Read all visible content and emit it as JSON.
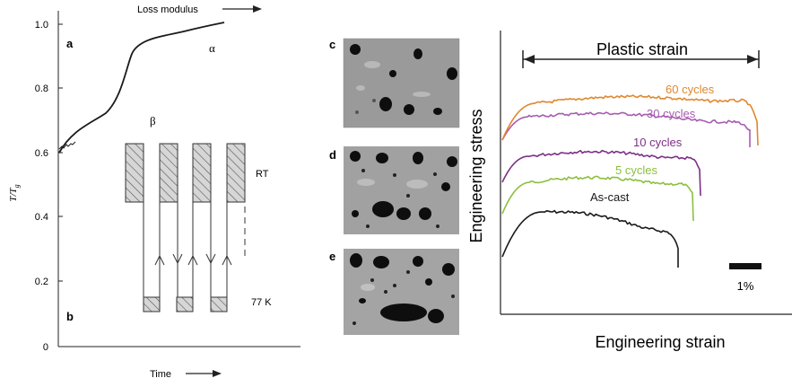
{
  "panel_a": {
    "letter": "a",
    "top_label": "Loss modulus",
    "y_label_main": "T/T",
    "y_label_sub": "g",
    "x_label": "Time",
    "alpha": "α",
    "beta": "β",
    "y_ticks": [
      "1.0",
      "0.8",
      "0.6",
      "0.4",
      "0.2",
      "0"
    ]
  },
  "panel_b": {
    "letter": "b",
    "rt_label": "RT",
    "cold_label": "77 K"
  },
  "micrographs": [
    {
      "letter": "c"
    },
    {
      "letter": "d"
    },
    {
      "letter": "e"
    }
  ],
  "stress_strain": {
    "x_label": "Engineering strain",
    "y_label": "Engineering stress",
    "plastic_label": "Plastic strain",
    "scale_label": "1%",
    "curves": [
      {
        "name": "As-cast",
        "color": "#1a1a1a"
      },
      {
        "name": "5 cycles",
        "color": "#8dbf3f"
      },
      {
        "name": "10 cycles",
        "color": "#7d2f86"
      },
      {
        "name": "30 cycles",
        "color": "#a65bb0"
      },
      {
        "name": "60 cycles",
        "color": "#e0872e"
      }
    ]
  }
}
